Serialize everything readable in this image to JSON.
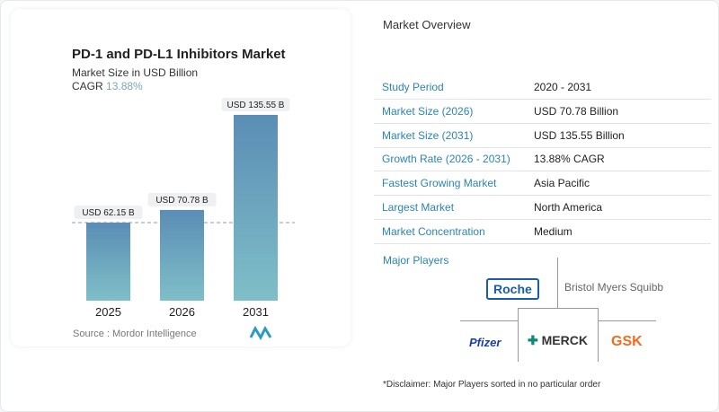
{
  "chart_data": {
    "type": "bar",
    "title": "PD-1 and PD-L1 Inhibitors Market",
    "subtitle": "Market Size in USD Billion",
    "cagr_label": "CAGR",
    "cagr_value": "13.88%",
    "categories": [
      "2025",
      "2026",
      "2031"
    ],
    "values": [
      62.15,
      70.78,
      135.55
    ],
    "data_labels": [
      "USD 62.15 B",
      "USD 70.78 B",
      "USD 135.55 B"
    ],
    "reference_line": "dashed at 2025 value",
    "colors": {
      "bar_top": "#5b8db5",
      "bar_bottom": "#7fbfc8"
    },
    "source": "Source :  Mordor Intelligence"
  },
  "overview": {
    "title": "Market Overview",
    "rows": [
      {
        "label": "Study Period",
        "value": "2020 - 2031"
      },
      {
        "label": "Market Size (2026)",
        "value": "USD 70.78 Billion"
      },
      {
        "label": "Market Size (2031)",
        "value": "USD 135.55 Billion"
      },
      {
        "label": "Growth Rate (2026 - 2031)",
        "value": "13.88% CAGR"
      },
      {
        "label": "Fastest Growing Market",
        "value": "Asia Pacific"
      },
      {
        "label": "Largest Market",
        "value": "North America"
      },
      {
        "label": "Market Concentration",
        "value": "Medium"
      }
    ],
    "major_players_title": "Major Players",
    "players": [
      "Roche",
      "Bristol Myers Squibb",
      "Pfizer",
      "MERCK",
      "GSK"
    ],
    "disclaimer": "*Disclaimer: Major Players sorted in no particular order"
  }
}
